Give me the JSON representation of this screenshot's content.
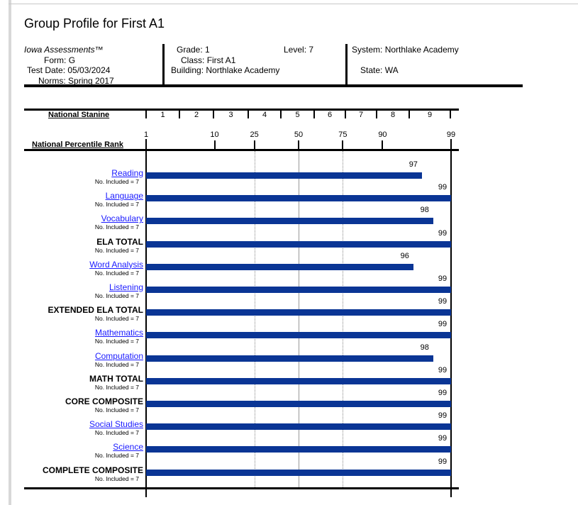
{
  "title": "Group Profile for First A1",
  "info": {
    "assessment": "Iowa Assessments™",
    "form_label": "Form:",
    "form": "G",
    "test_date_label": "Test Date:",
    "test_date": "05/03/2024",
    "norms_label": "Norms:",
    "norms": "Spring 2017",
    "grade_label": "Grade:",
    "grade": "1",
    "level_label": "Level:",
    "level": "7",
    "class_label": "Class:",
    "class": "First A1",
    "building_label": "Building:",
    "building": "Northlake Academy",
    "system_label": "System:",
    "system": "Northlake Academy",
    "state_label": "State:",
    "state": "WA"
  },
  "chart_data": {
    "type": "bar",
    "orientation": "horizontal",
    "stanine_label": "National Stanine",
    "stanines": [
      "1",
      "2",
      "3",
      "4",
      "5",
      "6",
      "7",
      "8",
      "9"
    ],
    "xlabel": "National Percentile Rank",
    "xticks": [
      1,
      10,
      25,
      50,
      75,
      90,
      99
    ],
    "xlim": [
      1,
      99
    ],
    "scale": "normal-curve",
    "gridlines": [
      25,
      50,
      75
    ],
    "bar_color": "#0a3595",
    "link_color": "#1a1aff",
    "rows": [
      {
        "label": "Reading",
        "link": true,
        "included": "No. Included = 7",
        "value": 97
      },
      {
        "label": "Language",
        "link": true,
        "included": "No. Included = 7",
        "value": 99
      },
      {
        "label": "Vocabulary",
        "link": true,
        "included": "No. Included = 7",
        "value": 98
      },
      {
        "label": "ELA TOTAL",
        "link": false,
        "included": "No. Included = 7",
        "value": 99
      },
      {
        "label": "Word Analysis",
        "link": true,
        "included": "No. Included = 7",
        "value": 96
      },
      {
        "label": "Listening",
        "link": true,
        "included": "No. Included = 7",
        "value": 99
      },
      {
        "label": "EXTENDED ELA TOTAL",
        "link": false,
        "included": "No. Included = 7",
        "value": 99
      },
      {
        "label": "Mathematics",
        "link": true,
        "included": "No. Included = 7",
        "value": 99
      },
      {
        "label": "Computation",
        "link": true,
        "included": "No. Included = 7",
        "value": 98
      },
      {
        "label": "MATH TOTAL",
        "link": false,
        "included": "No. Included = 7",
        "value": 99
      },
      {
        "label": "CORE COMPOSITE",
        "link": false,
        "included": "No. Included = 7",
        "value": 99
      },
      {
        "label": "Social Studies",
        "link": true,
        "included": "No. Included = 7",
        "value": 99
      },
      {
        "label": "Science",
        "link": true,
        "included": "No. Included = 7",
        "value": 99
      },
      {
        "label": "COMPLETE COMPOSITE",
        "link": false,
        "included": "No. Included = 7",
        "value": 99
      }
    ]
  }
}
